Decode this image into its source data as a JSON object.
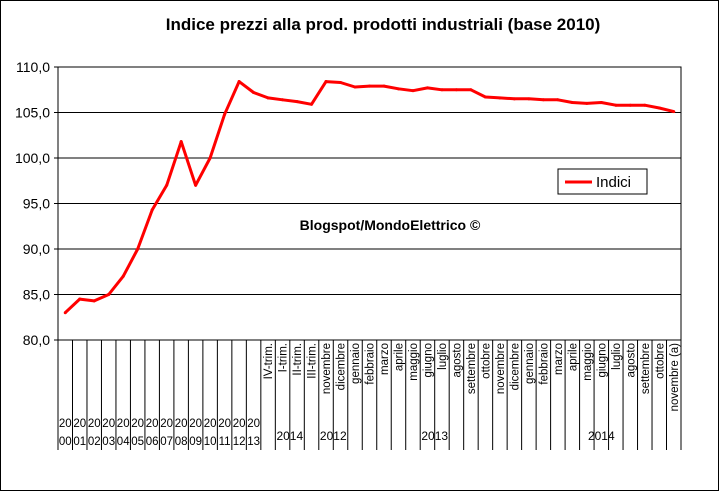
{
  "chart_data": {
    "type": "line",
    "title": "Indice prezzi alla prod. prodotti industriali (base 2010)",
    "watermark": "Blogspot/MondoElettrico ©",
    "ylim": [
      80,
      110
    ],
    "y_ticks": [
      "80,0",
      "85,0",
      "90,0",
      "95,0",
      "100,0",
      "105,0",
      "110,0"
    ],
    "grid": true,
    "legend_position": "right",
    "line_color": "#ff0000",
    "categories": [
      "2000",
      "2001",
      "2002",
      "2003",
      "2004",
      "2005",
      "2006",
      "2007",
      "2008",
      "2009",
      "2010",
      "2011",
      "2012",
      "2013",
      "IV-trim.",
      "I-trim.",
      "II-trim.",
      "III-trim.",
      "novembre",
      "dicembre",
      "gennaio",
      "febbraio",
      "marzo",
      "aprile",
      "maggio",
      "giugno",
      "luglio",
      "agosto",
      "settembre",
      "ottobre",
      "novembre",
      "dicembre",
      "gennaio",
      "febbraio",
      "marzo",
      "aprile",
      "maggio",
      "giugno",
      "luglio",
      "agosto",
      "settembre",
      "ottobre",
      "novembre (a)"
    ],
    "category_label_lines": [
      [
        "20",
        "00"
      ],
      [
        "20",
        "01"
      ],
      [
        "20",
        "02"
      ],
      [
        "20",
        "03"
      ],
      [
        "20",
        "04"
      ],
      [
        "20",
        "05"
      ],
      [
        "20",
        "06"
      ],
      [
        "20",
        "07"
      ],
      [
        "20",
        "08"
      ],
      [
        "20",
        "09"
      ],
      [
        "20",
        "10"
      ],
      [
        "20",
        "11"
      ],
      [
        "20",
        "12"
      ],
      [
        "20",
        "13"
      ]
    ],
    "group_labels": [
      {
        "label": "2014",
        "from": 14,
        "to": 17
      },
      {
        "label": "2012",
        "from": 18,
        "to": 19
      },
      {
        "label": "2013",
        "from": 20,
        "to": 31
      },
      {
        "label": "2014",
        "from": 32,
        "to": 42
      }
    ],
    "series": [
      {
        "name": "Indici",
        "values": [
          83.0,
          84.5,
          84.3,
          85.0,
          87.0,
          90.0,
          94.3,
          97.0,
          101.8,
          97.0,
          100.0,
          104.8,
          108.4,
          107.2,
          106.6,
          106.4,
          106.2,
          105.9,
          108.4,
          108.3,
          107.8,
          107.9,
          107.9,
          107.6,
          107.4,
          107.7,
          107.5,
          107.5,
          107.5,
          106.7,
          106.6,
          106.5,
          106.5,
          106.4,
          106.4,
          106.1,
          106.0,
          106.1,
          105.8,
          105.8,
          105.8,
          105.5,
          105.1
        ]
      }
    ]
  }
}
